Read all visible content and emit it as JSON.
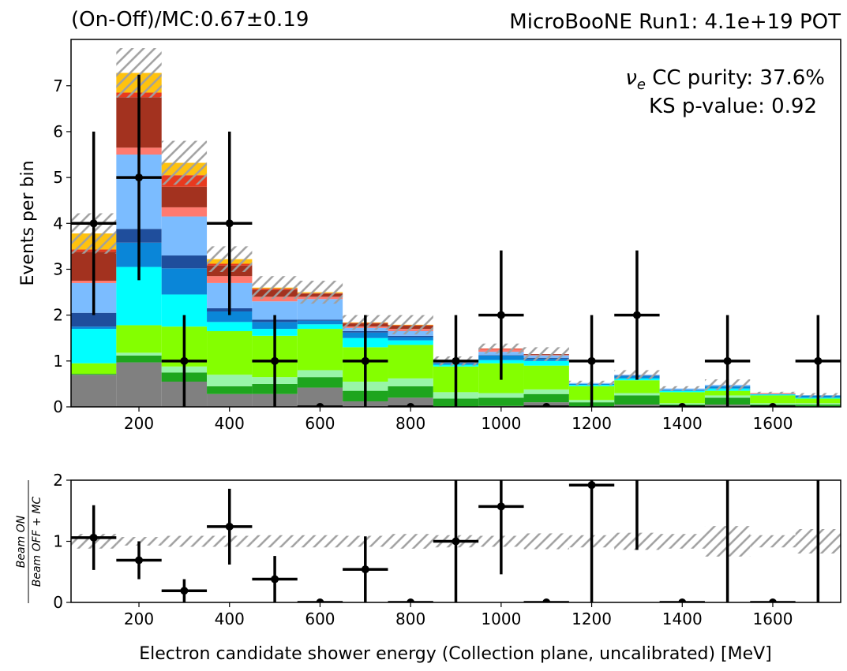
{
  "chart_data": [
    {
      "type": "stacked_histogram",
      "title_left": "(On-Off)/MC:0.67±0.19",
      "title_right": "MicroBooNE Run1: 4.1e+19 POT",
      "annotation": {
        "symbol": "ν",
        "subscript": "e",
        "text": " CC purity: 37.6%"
      },
      "annotation2": "KS p-value: 0.92",
      "ylabel": "Events per bin",
      "bins": [
        50,
        150,
        250,
        350,
        450,
        550,
        650,
        750,
        850,
        950,
        1050,
        1150,
        1250,
        1350,
        1450,
        1550,
        1650,
        1750
      ],
      "xlim": [
        50,
        1750
      ],
      "xticks": [
        200,
        400,
        600,
        800,
        1000,
        1200,
        1400,
        1600
      ],
      "ylim": [
        0,
        8.01
      ],
      "yticks": [
        0,
        1,
        2,
        3,
        4,
        5,
        6,
        7
      ],
      "series": [
        {
          "color": "#808080",
          "values": [
            0.7,
            0.97,
            0.55,
            0.28,
            0.28,
            0.42,
            0.12,
            0.2,
            0,
            0.02,
            0.1,
            0,
            0.05,
            0,
            0.05,
            0,
            0
          ]
        },
        {
          "color": "#1ea51e",
          "values": [
            0.02,
            0.15,
            0.2,
            0.17,
            0.22,
            0.23,
            0.23,
            0.25,
            0.18,
            0.18,
            0.18,
            0.1,
            0.2,
            0.05,
            0.15,
            0.05,
            0.05
          ]
        },
        {
          "color": "#98f5a8",
          "values": [
            0,
            0.06,
            0.13,
            0.25,
            0.15,
            0.15,
            0.2,
            0.17,
            0.14,
            0.1,
            0.1,
            0.05,
            0.05,
            0.03,
            0.05,
            0.03,
            0.03
          ]
        },
        {
          "color": "#84ff00",
          "values": [
            0.23,
            0.6,
            0.87,
            0.95,
            0.9,
            0.9,
            0.75,
            0.73,
            0.56,
            0.65,
            0.52,
            0.3,
            0.28,
            0.24,
            0.1,
            0.17,
            0.1
          ]
        },
        {
          "color": "#00ffff",
          "values": [
            0.75,
            1.27,
            0.7,
            0.2,
            0.15,
            0.1,
            0.2,
            0.1,
            0.04,
            0.07,
            0.1,
            0.03,
            0.04,
            0.03,
            0.05,
            0.02,
            0.02
          ]
        },
        {
          "color": "#0a86d8",
          "values": [
            0.05,
            0.53,
            0.57,
            0.23,
            0.15,
            0.08,
            0.12,
            0.07,
            0.03,
            0.1,
            0.05,
            0.02,
            0.05,
            0.02,
            0.05,
            0.01,
            0.05
          ]
        },
        {
          "color": "#1f4e9c",
          "values": [
            0.3,
            0.3,
            0.28,
            0.07,
            0.05,
            0.02,
            0.03,
            0.03,
            0.01,
            0.01,
            0.02,
            0,
            0.01,
            0,
            0,
            0,
            0
          ]
        },
        {
          "color": "#7bbcff",
          "values": [
            0.65,
            1.62,
            0.85,
            0.55,
            0.4,
            0.45,
            0.07,
            0.1,
            0.04,
            0.07,
            0.05,
            0.02,
            0.02,
            0.03,
            0.03,
            0,
            0
          ]
        },
        {
          "color": "#ff7a70",
          "values": [
            0.05,
            0.15,
            0.2,
            0.15,
            0.1,
            0.05,
            0.03,
            0.05,
            0,
            0.05,
            0.01,
            0,
            0,
            0,
            0,
            0.02,
            0
          ]
        },
        {
          "color": "#a3321f",
          "values": [
            0.63,
            1.1,
            0.45,
            0.23,
            0.15,
            0.07,
            0.07,
            0.07,
            0,
            0,
            0.02,
            0,
            0,
            0,
            0,
            0,
            0
          ]
        },
        {
          "color": "#e83a1f",
          "values": [
            0.05,
            0.1,
            0.25,
            0.04,
            0.03,
            0.01,
            0.01,
            0.01,
            0,
            0.02,
            0,
            0,
            0,
            0,
            0,
            0,
            0
          ]
        },
        {
          "color": "#ffc20e",
          "values": [
            0.35,
            0.43,
            0.27,
            0.1,
            0.02,
            0.02,
            0.01,
            0.01,
            0,
            0,
            0,
            0,
            0,
            0,
            0,
            0,
            0
          ]
        }
      ],
      "mc_error": [
        0.44,
        0.54,
        0.48,
        0.28,
        0.25,
        0.25,
        0.16,
        0.21,
        0.1,
        0.11,
        0.15,
        0.05,
        0.1,
        0.05,
        0.12,
        0.03,
        0.05
      ],
      "data_points": {
        "color": "#000000",
        "values": [
          4,
          5,
          1,
          4,
          1,
          0,
          1,
          0,
          1,
          2,
          0,
          1,
          2,
          0,
          1,
          0,
          1
        ],
        "errors": [
          2,
          2.24,
          1,
          2,
          1,
          0,
          1,
          0,
          1,
          1.41,
          0,
          1,
          1.41,
          0,
          1,
          0,
          1
        ]
      }
    },
    {
      "type": "ratio",
      "ylabel": {
        "numerator": "Beam ON",
        "denominator": "Beam OFF + MC"
      },
      "xlabel": "Electron candidate shower energy (Collection plane, uncalibrated) [MeV]",
      "bins": [
        50,
        150,
        250,
        350,
        450,
        550,
        650,
        750,
        850,
        950,
        1050,
        1150,
        1250,
        1350,
        1450,
        1550,
        1650,
        1750
      ],
      "xlim": [
        50,
        1750
      ],
      "xticks": [
        200,
        400,
        600,
        800,
        1000,
        1200,
        1400,
        1600
      ],
      "ylim": [
        0,
        2
      ],
      "yticks": [
        0,
        1,
        2
      ],
      "reference_line": 1,
      "mc_error": [
        0.12,
        0.07,
        0.09,
        0.09,
        0.1,
        0.1,
        0.09,
        0.12,
        0.1,
        0.09,
        0.13,
        0.1,
        0.14,
        0.12,
        0.25,
        0.1,
        0.2
      ],
      "data_points": {
        "color": "#000000",
        "values": [
          1.06,
          0.69,
          0.19,
          1.24,
          0.38,
          0,
          0.54,
          0,
          1.0,
          1.57,
          0,
          1.92,
          2.86,
          0,
          2.08,
          0,
          4.0
        ],
        "errors": [
          0.53,
          0.31,
          0.19,
          0.62,
          0.38,
          0,
          0.54,
          0,
          1.0,
          1.11,
          0,
          1.92,
          2.0,
          0,
          2.08,
          0,
          4.0
        ]
      }
    }
  ]
}
